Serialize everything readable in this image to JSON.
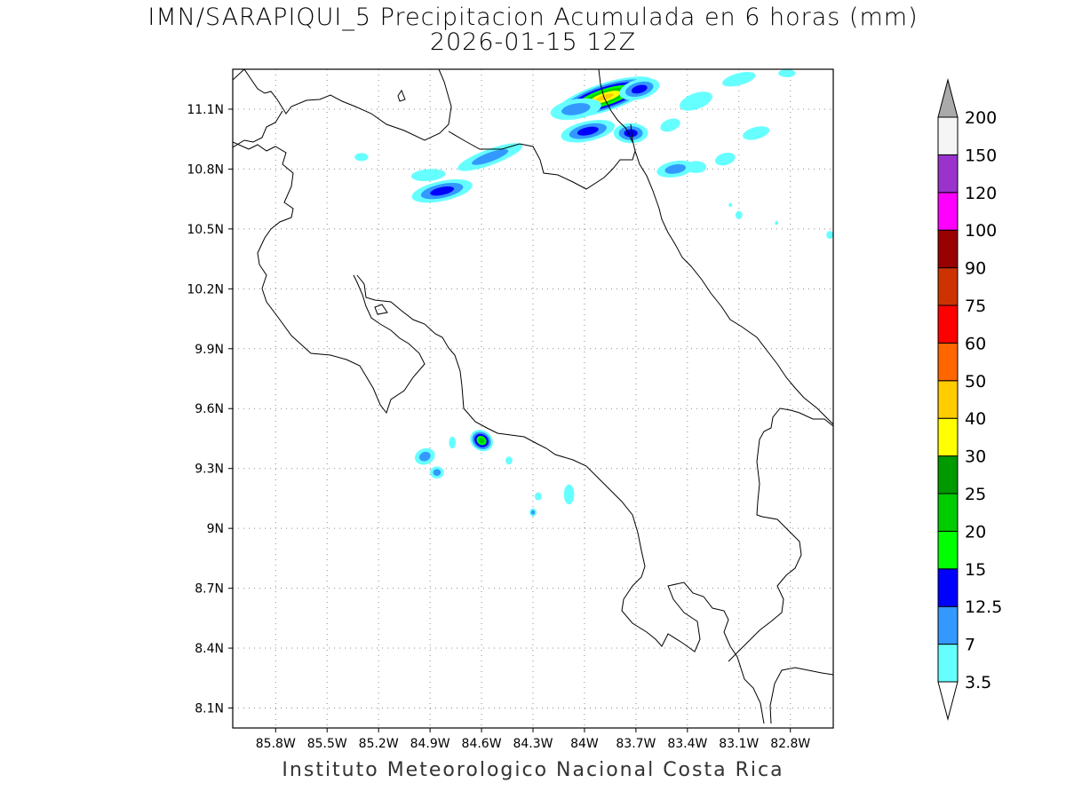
{
  "title": {
    "line1": "IMN/SARAPIQUI_5 Precipitacion Acumulada en 6 horas (mm)",
    "line2": "2026-01-15 12Z"
  },
  "footer": "Instituto Meteorologico Nacional Costa Rica",
  "map": {
    "lon_range": [
      -86.05,
      -82.55
    ],
    "lat_range": [
      8.0,
      11.3
    ],
    "lon_ticks": [
      {
        "value": -85.8,
        "label": "85.8W"
      },
      {
        "value": -85.5,
        "label": "85.5W"
      },
      {
        "value": -85.2,
        "label": "85.2W"
      },
      {
        "value": -84.9,
        "label": "84.9W"
      },
      {
        "value": -84.6,
        "label": "84.6W"
      },
      {
        "value": -84.3,
        "label": "84.3W"
      },
      {
        "value": -84.0,
        "label": "84W"
      },
      {
        "value": -83.7,
        "label": "83.7W"
      },
      {
        "value": -83.4,
        "label": "83.4W"
      },
      {
        "value": -83.1,
        "label": "83.1W"
      },
      {
        "value": -82.8,
        "label": "82.8W"
      }
    ],
    "lat_ticks": [
      {
        "value": 11.1,
        "label": "11.1N"
      },
      {
        "value": 10.8,
        "label": "10.8N"
      },
      {
        "value": 10.5,
        "label": "10.5N"
      },
      {
        "value": 10.2,
        "label": "10.2N"
      },
      {
        "value": 9.9,
        "label": "9.9N"
      },
      {
        "value": 9.6,
        "label": "9.6N"
      },
      {
        "value": 9.3,
        "label": "9.3N"
      },
      {
        "value": 9.0,
        "label": "9N"
      },
      {
        "value": 8.7,
        "label": "8.7N"
      },
      {
        "value": 8.4,
        "label": "8.4N"
      },
      {
        "value": 8.1,
        "label": "8.1N"
      }
    ],
    "grid": true,
    "colors": {
      "coast": "#000000",
      "grid": "#8c8c8c",
      "frame": "#000000"
    }
  },
  "colorbar": {
    "levels": [
      {
        "label": "3.5",
        "color": "#66ffff"
      },
      {
        "label": "7",
        "color": "#3399ff"
      },
      {
        "label": "12.5",
        "color": "#0000ff"
      },
      {
        "label": "15",
        "color": "#00ff00"
      },
      {
        "label": "20",
        "color": "#00cc00"
      },
      {
        "label": "25",
        "color": "#009900"
      },
      {
        "label": "30",
        "color": "#ffff00"
      },
      {
        "label": "40",
        "color": "#ffcc00"
      },
      {
        "label": "50",
        "color": "#ff6600"
      },
      {
        "label": "60",
        "color": "#ff0000"
      },
      {
        "label": "75",
        "color": "#cc3300"
      },
      {
        "label": "90",
        "color": "#990000"
      },
      {
        "label": "100",
        "color": "#ff00ff"
      },
      {
        "label": "120",
        "color": "#9933cc"
      },
      {
        "label": "150",
        "color": "#f5f5f5"
      },
      {
        "label": "200",
        "color": "#aaaaaa"
      }
    ],
    "top_triangle_color": "#aaaaaa",
    "bottom_triangle_color": "#ffffff"
  },
  "precip_cells": [
    {
      "lon": -83.88,
      "lat": 11.16,
      "rlon": 0.3,
      "rlat": 0.07,
      "angle": -18,
      "levels": [
        "3.5",
        "7",
        "12.5",
        "15",
        "20",
        "30",
        "40"
      ]
    },
    {
      "lon": -84.05,
      "lat": 11.1,
      "rlon": 0.15,
      "rlat": 0.05,
      "angle": -10,
      "levels": [
        "3.5",
        "7"
      ]
    },
    {
      "lon": -83.98,
      "lat": 10.99,
      "rlon": 0.16,
      "rlat": 0.05,
      "angle": -12,
      "levels": [
        "3.5",
        "7",
        "12.5"
      ]
    },
    {
      "lon": -83.73,
      "lat": 10.98,
      "rlon": 0.1,
      "rlat": 0.05,
      "angle": 0,
      "levels": [
        "3.5",
        "7",
        "12.5"
      ]
    },
    {
      "lon": -83.5,
      "lat": 11.02,
      "rlon": 0.06,
      "rlat": 0.03,
      "angle": -20,
      "levels": [
        "3.5"
      ]
    },
    {
      "lon": -83.68,
      "lat": 11.2,
      "rlon": 0.12,
      "rlat": 0.05,
      "angle": -15,
      "levels": [
        "3.5",
        "7",
        "12.5"
      ]
    },
    {
      "lon": -83.35,
      "lat": 11.14,
      "rlon": 0.1,
      "rlat": 0.04,
      "angle": -20,
      "levels": [
        "3.5"
      ]
    },
    {
      "lon": -83.1,
      "lat": 11.25,
      "rlon": 0.1,
      "rlat": 0.03,
      "angle": -15,
      "levels": [
        "3.5"
      ]
    },
    {
      "lon": -83.0,
      "lat": 10.98,
      "rlon": 0.08,
      "rlat": 0.03,
      "angle": -15,
      "levels": [
        "3.5"
      ]
    },
    {
      "lon": -82.82,
      "lat": 11.28,
      "rlon": 0.05,
      "rlat": 0.02,
      "angle": 0,
      "levels": [
        "3.5"
      ]
    },
    {
      "lon": -83.47,
      "lat": 10.8,
      "rlon": 0.11,
      "rlat": 0.04,
      "angle": -10,
      "levels": [
        "3.5",
        "7"
      ]
    },
    {
      "lon": -83.35,
      "lat": 10.81,
      "rlon": 0.06,
      "rlat": 0.03,
      "angle": 0,
      "levels": [
        "3.5"
      ]
    },
    {
      "lon": -83.18,
      "lat": 10.85,
      "rlon": 0.06,
      "rlat": 0.03,
      "angle": -15,
      "levels": [
        "3.5"
      ]
    },
    {
      "lon": -83.1,
      "lat": 10.57,
      "rlon": 0.02,
      "rlat": 0.02,
      "angle": 0,
      "levels": [
        "3.5"
      ]
    },
    {
      "lon": -83.15,
      "lat": 10.62,
      "rlon": 0.01,
      "rlat": 0.01,
      "angle": 0,
      "levels": [
        "3.5"
      ]
    },
    {
      "lon": -82.88,
      "lat": 10.53,
      "rlon": 0.01,
      "rlat": 0.01,
      "angle": 0,
      "levels": [
        "3.5"
      ]
    },
    {
      "lon": -82.57,
      "lat": 10.47,
      "rlon": 0.02,
      "rlat": 0.02,
      "angle": 0,
      "levels": [
        "3.5"
      ]
    },
    {
      "lon": -84.83,
      "lat": 10.69,
      "rlon": 0.18,
      "rlat": 0.05,
      "angle": -12,
      "levels": [
        "3.5",
        "7",
        "12.5"
      ]
    },
    {
      "lon": -84.91,
      "lat": 10.77,
      "rlon": 0.1,
      "rlat": 0.03,
      "angle": -5,
      "levels": [
        "3.5"
      ]
    },
    {
      "lon": -84.55,
      "lat": 10.86,
      "rlon": 0.2,
      "rlat": 0.04,
      "angle": -20,
      "levels": [
        "3.5",
        "7"
      ]
    },
    {
      "lon": -85.3,
      "lat": 10.86,
      "rlon": 0.04,
      "rlat": 0.02,
      "angle": 0,
      "levels": [
        "3.5"
      ]
    },
    {
      "lon": -84.6,
      "lat": 9.44,
      "rlon": 0.07,
      "rlat": 0.05,
      "angle": 35,
      "levels": [
        "3.5",
        "7",
        "12.5",
        "15",
        "20"
      ]
    },
    {
      "lon": -84.93,
      "lat": 9.36,
      "rlon": 0.06,
      "rlat": 0.04,
      "angle": -20,
      "levels": [
        "3.5",
        "7"
      ]
    },
    {
      "lon": -84.86,
      "lat": 9.28,
      "rlon": 0.04,
      "rlat": 0.03,
      "angle": 0,
      "levels": [
        "3.5",
        "7"
      ]
    },
    {
      "lon": -84.77,
      "lat": 9.43,
      "rlon": 0.02,
      "rlat": 0.03,
      "angle": 0,
      "levels": [
        "3.5"
      ]
    },
    {
      "lon": -84.44,
      "lat": 9.34,
      "rlon": 0.02,
      "rlat": 0.02,
      "angle": 0,
      "levels": [
        "3.5"
      ]
    },
    {
      "lon": -84.27,
      "lat": 9.16,
      "rlon": 0.02,
      "rlat": 0.02,
      "angle": 0,
      "levels": [
        "3.5"
      ]
    },
    {
      "lon": -84.09,
      "lat": 9.17,
      "rlon": 0.03,
      "rlat": 0.05,
      "angle": 0,
      "levels": [
        "3.5"
      ]
    },
    {
      "lon": -84.3,
      "lat": 9.08,
      "rlon": 0.02,
      "rlat": 0.02,
      "angle": 0,
      "levels": [
        "3.5",
        "7"
      ]
    }
  ]
}
